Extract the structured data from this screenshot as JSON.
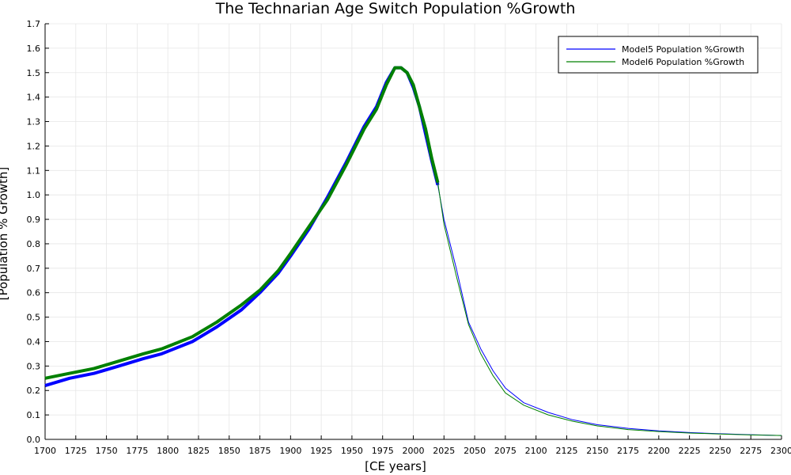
{
  "chart_data": {
    "type": "line",
    "title": "The Technarian Age Switch Population %Growth",
    "xlabel": "[CE years]",
    "ylabel": "[Population % Growth]",
    "xlim": [
      1700,
      2300
    ],
    "ylim": [
      0,
      1.7
    ],
    "x_ticks": [
      1700,
      1725,
      1750,
      1775,
      1800,
      1825,
      1850,
      1875,
      1900,
      1925,
      1950,
      1975,
      2000,
      2025,
      2050,
      2075,
      2100,
      2125,
      2150,
      2175,
      2200,
      2225,
      2250,
      2275,
      2300
    ],
    "y_ticks": [
      0.0,
      0.1,
      0.2,
      0.3,
      0.4,
      0.5,
      0.6,
      0.7,
      0.8,
      0.9,
      1.0,
      1.1,
      1.2,
      1.3,
      1.4,
      1.5,
      1.6,
      1.7
    ],
    "grid": true,
    "legend_position": "top-right",
    "series": [
      {
        "name": "Model5 Population %Growth",
        "color": "#0000ff",
        "historical_end_year": 2020,
        "x": [
          1700,
          1720,
          1740,
          1760,
          1780,
          1795,
          1800,
          1820,
          1840,
          1860,
          1875,
          1890,
          1900,
          1915,
          1930,
          1945,
          1960,
          1970,
          1978,
          1985,
          1990,
          1995,
          2000,
          2005,
          2010,
          2015,
          2020,
          2025,
          2035,
          2045,
          2055,
          2065,
          2075,
          2090,
          2110,
          2130,
          2150,
          2175,
          2200,
          2225,
          2250,
          2275,
          2300
        ],
        "y": [
          0.22,
          0.25,
          0.27,
          0.3,
          0.33,
          0.35,
          0.36,
          0.4,
          0.46,
          0.53,
          0.6,
          0.68,
          0.75,
          0.86,
          0.99,
          1.13,
          1.28,
          1.36,
          1.46,
          1.52,
          1.52,
          1.5,
          1.44,
          1.36,
          1.25,
          1.14,
          1.04,
          0.9,
          0.7,
          0.48,
          0.37,
          0.28,
          0.21,
          0.15,
          0.11,
          0.08,
          0.06,
          0.045,
          0.035,
          0.028,
          0.023,
          0.019,
          0.016
        ]
      },
      {
        "name": "Model6 Population %Growth",
        "color": "#008000",
        "historical_end_year": 2020,
        "x": [
          1700,
          1720,
          1740,
          1760,
          1780,
          1795,
          1800,
          1820,
          1840,
          1860,
          1875,
          1890,
          1900,
          1915,
          1930,
          1945,
          1960,
          1970,
          1978,
          1985,
          1990,
          1995,
          2000,
          2005,
          2010,
          2015,
          2020,
          2025,
          2035,
          2045,
          2055,
          2065,
          2075,
          2090,
          2110,
          2130,
          2150,
          2175,
          2200,
          2225,
          2250,
          2275,
          2300
        ],
        "y": [
          0.25,
          0.27,
          0.29,
          0.32,
          0.35,
          0.37,
          0.38,
          0.42,
          0.48,
          0.55,
          0.61,
          0.69,
          0.76,
          0.87,
          0.98,
          1.12,
          1.27,
          1.35,
          1.45,
          1.52,
          1.52,
          1.5,
          1.45,
          1.36,
          1.27,
          1.15,
          1.05,
          0.88,
          0.67,
          0.47,
          0.35,
          0.26,
          0.19,
          0.14,
          0.1,
          0.074,
          0.055,
          0.04,
          0.032,
          0.026,
          0.022,
          0.018,
          0.016
        ]
      }
    ]
  }
}
